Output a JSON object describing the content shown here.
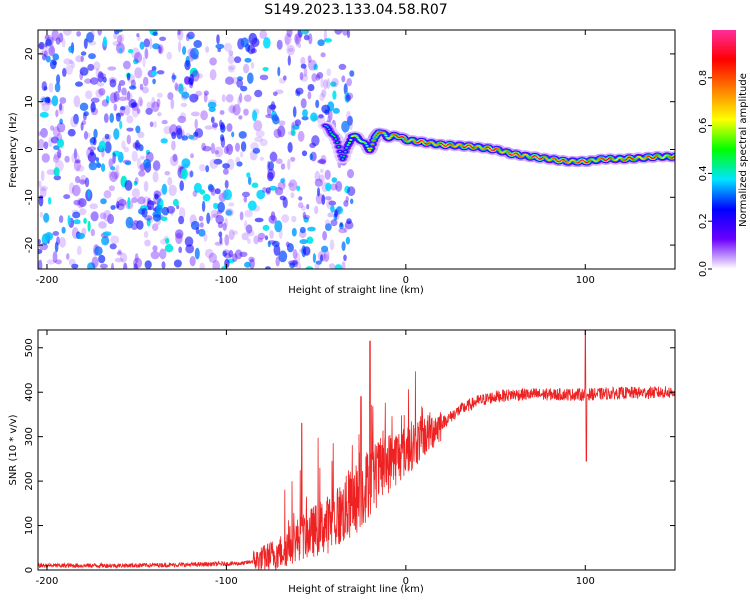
{
  "title": "S149.2023.133.04.58.R07",
  "chart_data": [
    {
      "type": "heatmap",
      "xlabel": "Height of straight line (km)",
      "ylabel": "Frequency (Hz)",
      "xlim": [
        -205,
        150
      ],
      "ylim": [
        -25,
        25
      ],
      "x_ticks": [
        -200,
        -100,
        0,
        100
      ],
      "y_ticks": [
        -20,
        -10,
        0,
        10,
        20
      ],
      "colorbar": {
        "label": "Normalized spectral amplitude",
        "range": [
          0,
          1
        ],
        "ticks": [
          0.0,
          0.2,
          0.4,
          0.6,
          0.8
        ],
        "colors": [
          "#ffffff",
          "#6a00ff",
          "#0000ff",
          "#00e5ff",
          "#00ff00",
          "#ffff00",
          "#ff8000",
          "#ff0000",
          "#ff2d9c"
        ]
      },
      "signal_track": {
        "x": [
          -45,
          -40,
          -35,
          -30,
          -25,
          -20,
          -15,
          -10,
          -5,
          0,
          10,
          20,
          30,
          40,
          50,
          60,
          70,
          80,
          90,
          100,
          110,
          120,
          130,
          140,
          150
        ],
        "freq": [
          5,
          3,
          -2,
          3,
          2,
          0,
          4,
          2.5,
          3,
          2,
          1.5,
          1,
          0.8,
          0.5,
          0,
          -1,
          -1.5,
          -2,
          -2.5,
          -2.5,
          -2,
          -2,
          -1.8,
          -1.5,
          -1.5
        ],
        "amp": [
          0.35,
          0.45,
          0.55,
          0.6,
          0.7,
          0.75,
          0.8,
          0.85,
          0.85,
          0.9,
          0.9,
          0.9,
          0.88,
          0.9,
          0.88,
          0.9,
          0.88,
          0.9,
          0.88,
          0.9,
          0.86,
          0.85,
          0.84,
          0.85,
          0.84
        ]
      },
      "noise_region_x": [
        -205,
        -45
      ],
      "noise_level": "scattered low-amplitude spectral blobs"
    },
    {
      "type": "line",
      "xlabel": "Height of straight line (km)",
      "ylabel": "SNR (10 * v/v)",
      "xlim": [
        -205,
        150
      ],
      "ylim": [
        0,
        540
      ],
      "x_ticks": [
        -200,
        -100,
        0,
        100
      ],
      "y_ticks": [
        0,
        100,
        200,
        300,
        400,
        500
      ],
      "color": "#ee2222",
      "trend": {
        "x": [
          -205,
          -160,
          -120,
          -90,
          -80,
          -70,
          -60,
          -50,
          -40,
          -30,
          -20,
          -10,
          0,
          10,
          20,
          30,
          40,
          50,
          60,
          80,
          100,
          120,
          150
        ],
        "y": [
          10,
          10,
          12,
          15,
          25,
          40,
          70,
          90,
          110,
          150,
          200,
          240,
          270,
          300,
          330,
          360,
          380,
          390,
          395,
          395,
          395,
          398,
          400
        ]
      },
      "spikes": [
        {
          "x": -58,
          "y": 330
        },
        {
          "x": -20,
          "y": 515
        },
        {
          "x": -25,
          "y": 390
        },
        {
          "x": 100,
          "y": 540
        },
        {
          "x": 100.6,
          "y": 245
        }
      ]
    }
  ]
}
